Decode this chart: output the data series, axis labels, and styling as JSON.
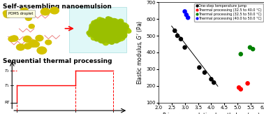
{
  "xlabel": "Primary correlation length, $L_{C,1}$ (μm)",
  "ylabel": "Elastic modulus, $G'$ (Pa)",
  "xlim": [
    2.0,
    6.0
  ],
  "ylim": [
    100,
    700
  ],
  "yticks": [
    100,
    200,
    300,
    400,
    500,
    600,
    700
  ],
  "xticks": [
    2.0,
    2.5,
    3.0,
    3.5,
    4.0,
    4.5,
    5.0,
    5.5,
    6.0
  ],
  "black_points": [
    [
      2.62,
      530
    ],
    [
      2.72,
      500
    ],
    [
      2.85,
      480
    ],
    [
      3.0,
      430
    ],
    [
      3.55,
      310
    ],
    [
      3.75,
      280
    ],
    [
      4.0,
      240
    ],
    [
      4.1,
      220
    ]
  ],
  "black_line_x": [
    2.5,
    4.25
  ],
  "black_line_y": [
    558,
    198
  ],
  "red_points": [
    [
      5.05,
      190
    ],
    [
      5.12,
      180
    ],
    [
      5.38,
      215
    ]
  ],
  "green_points": [
    [
      5.12,
      390
    ],
    [
      5.47,
      430
    ],
    [
      5.58,
      420
    ]
  ],
  "blue_points": [
    [
      3.0,
      645
    ],
    [
      3.06,
      625
    ],
    [
      3.12,
      608
    ]
  ],
  "legend_labels": [
    "One-step temperature jump",
    "Thermal processing (32.5 to 40.0 °C)",
    "Thermal processing (32.5 to 50.0 °C)",
    "Thermal processing (40.0 to 50.0 °C)"
  ],
  "legend_colors": [
    "black",
    "red",
    "green",
    "blue"
  ],
  "marker_size": 22,
  "title_top": "Self-assembling nanoemulsion",
  "title_mid": "Sequential thermal processing",
  "bg_color": "#ffffff"
}
